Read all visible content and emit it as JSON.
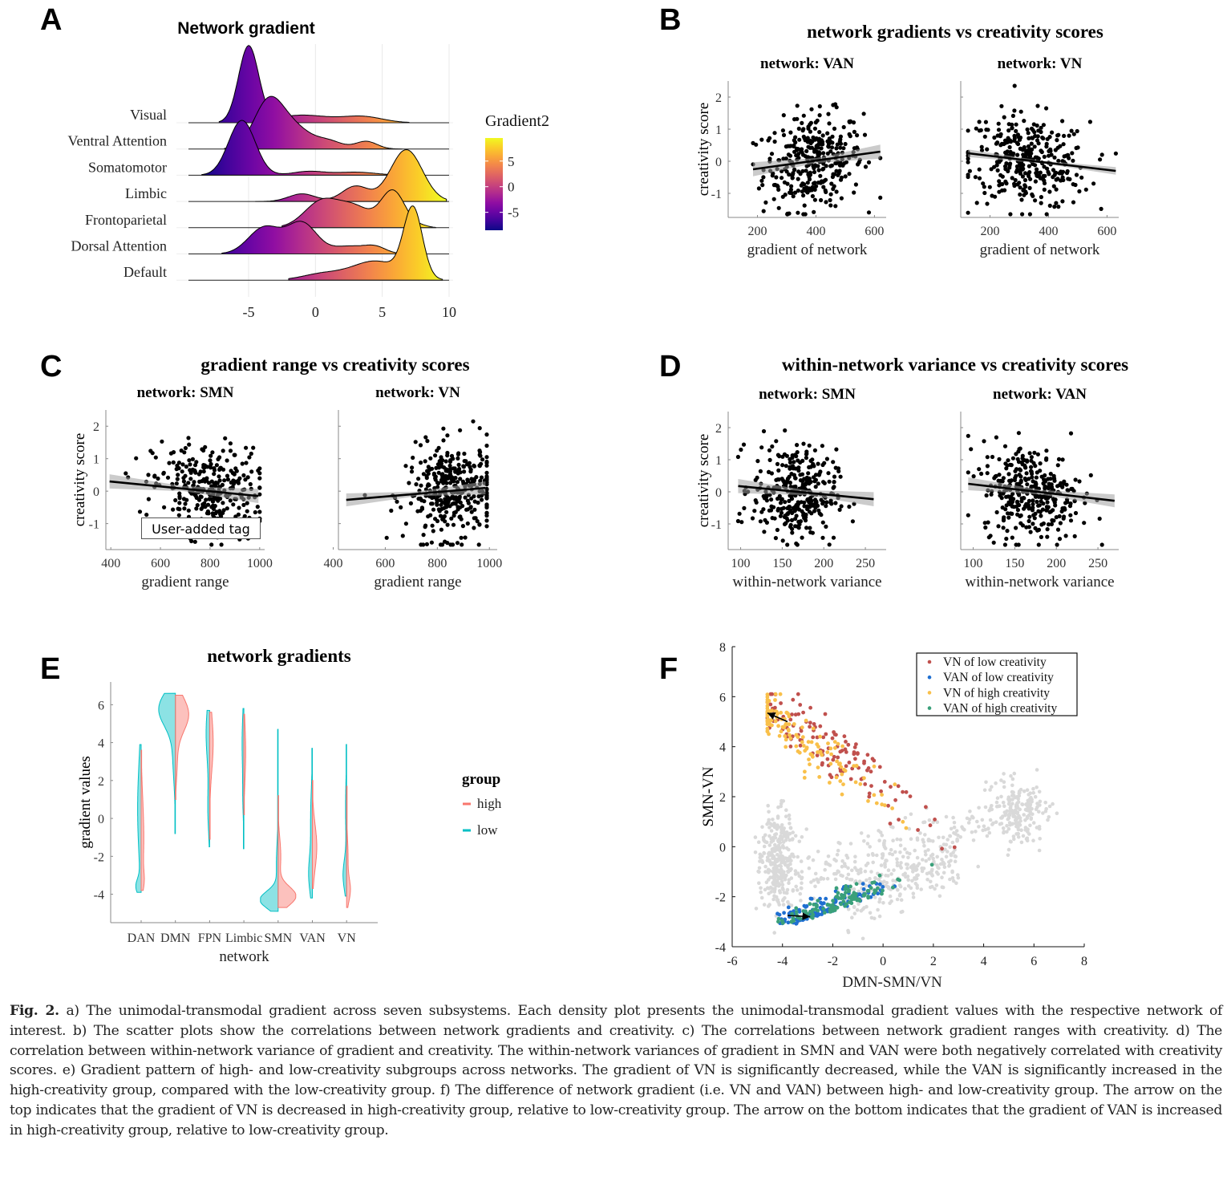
{
  "panels": {
    "A": "A",
    "B": "B",
    "C": "C",
    "D": "D",
    "E": "E",
    "F": "F"
  },
  "user_tag": "User-added tag",
  "caption": {
    "label": "Fig. 2.",
    "text": " a) The unimodal-transmodal gradient across seven subsystems. Each density plot presents the unimodal-transmodal gradient values with the respective network of interest. b) The scatter plots show the correlations between network gradients and creativity. c) The correlations between network gradient ranges with creativity. d) The correlation between within-network variance of gradient and creativity. The within-network variances of gradient in SMN and VAN were both negatively correlated with creativity scores. e) Gradient pattern of high- and low-creativity subgroups across networks. The gradient of VN is significantly decreased, while the VAN is significantly increased in the high-creativity group, compared with the low-creativity group. f) The difference of network gradient (i.e. VN and VAN) between high- and low-creativity group. The arrow on the top indicates that the gradient of VN is decreased in high-creativity group, relative to low-creativity group. The arrow on the bottom indicates that the gradient of VAN is increased in high-creativity group, relative to low-creativity group."
  },
  "chart_data": [
    {
      "id": "A",
      "type": "area",
      "subtype": "ridgeline",
      "title": "Network gradient",
      "xlabel": "",
      "ylabel": "",
      "xlim": [
        -9.5,
        10
      ],
      "xticks": [
        -5,
        0,
        5,
        10
      ],
      "grid": true,
      "legend": {
        "title": "Gradient2",
        "ticks": [
          5,
          0,
          -5
        ],
        "range": [
          -8.5,
          9.5
        ],
        "colormap": "plasma",
        "placement": "right"
      },
      "series": [
        {
          "name": "Visual",
          "peaks": [
            [
              -5.0,
              1.0,
              0.75
            ],
            [
              -1.0,
              0.1,
              2.0
            ],
            [
              3.5,
              0.08,
              1.5
            ]
          ],
          "range": [
            -7.2,
            7.0
          ]
        },
        {
          "name": "Ventral Attention",
          "peaks": [
            [
              -3.5,
              0.62,
              1.1
            ],
            [
              -1.5,
              0.25,
              1.2
            ],
            [
              1.0,
              0.1,
              1.0
            ],
            [
              3.8,
              0.1,
              0.8
            ]
          ],
          "range": [
            -6.8,
            6.5
          ]
        },
        {
          "name": "Somatomotor",
          "peaks": [
            [
              -5.5,
              0.72,
              1.0
            ],
            [
              -0.5,
              0.05,
              1.2
            ],
            [
              3.0,
              0.04,
              1.5
            ]
          ],
          "range": [
            -8.5,
            6.0
          ]
        },
        {
          "name": "Limbic",
          "peaks": [
            [
              -1.0,
              0.1,
              1.0
            ],
            [
              3.0,
              0.2,
              1.0
            ],
            [
              6.8,
              0.68,
              1.2
            ]
          ],
          "range": [
            -4.5,
            9.8
          ]
        },
        {
          "name": "Frontoparietal",
          "peaks": [
            [
              0.5,
              0.35,
              1.3
            ],
            [
              3.0,
              0.25,
              1.2
            ],
            [
              5.8,
              0.48,
              0.9
            ],
            [
              8.0,
              0.02,
              0.5
            ]
          ],
          "range": [
            -2.5,
            9.0
          ]
        },
        {
          "name": "Dorsal Attention",
          "peaks": [
            [
              -3.8,
              0.35,
              1.2
            ],
            [
              -1.0,
              0.4,
              1.1
            ],
            [
              2.5,
              0.1,
              1.3
            ],
            [
              4.5,
              0.08,
              0.8
            ]
          ],
          "range": [
            -7.0,
            6.0
          ]
        },
        {
          "name": "Default",
          "peaks": [
            [
              0.5,
              0.08,
              1.5
            ],
            [
              4.5,
              0.25,
              1.8
            ],
            [
              7.3,
              0.9,
              0.7
            ]
          ],
          "range": [
            -2.0,
            9.5
          ]
        }
      ]
    },
    {
      "id": "B",
      "type": "scatter",
      "title": "network gradients vs creativity scores",
      "ylabel": "creativity score",
      "facets": [
        {
          "subtitle": "network: VAN",
          "xlabel": "gradient of network",
          "xlim": [
            100,
            640
          ],
          "xticks": [
            200,
            400,
            600
          ],
          "ylim": [
            -1.75,
            2.5
          ],
          "yticks": [
            2,
            1,
            0,
            -1
          ],
          "fit": {
            "x": [
              185,
              620
            ],
            "y": [
              -0.25,
              0.3
            ],
            "ci": 0.22
          },
          "cloud": {
            "n": 330,
            "xmean": 390,
            "xsd": 85,
            "ymean": 0.0,
            "ysd": 0.72,
            "slope": 0.0013,
            "xmin": 185,
            "xmax": 620
          }
        },
        {
          "subtitle": "network: VN",
          "xlabel": "gradient of network",
          "xlim": [
            100,
            640
          ],
          "xticks": [
            200,
            400,
            600
          ],
          "ylim": [
            -1.75,
            2.5
          ],
          "yticks": [
            2,
            1,
            0,
            -1
          ],
          "fit": {
            "x": [
              125,
              630
            ],
            "y": [
              0.25,
              -0.3
            ],
            "ci": 0.12
          },
          "cloud": {
            "n": 330,
            "xmean": 330,
            "xsd": 105,
            "ymean": 0.0,
            "ysd": 0.72,
            "slope": -0.0011,
            "xmin": 125,
            "xmax": 630
          }
        }
      ]
    },
    {
      "id": "C",
      "type": "scatter",
      "title": "gradient range vs creativity scores",
      "ylabel": "creativity score",
      "facets": [
        {
          "subtitle": "network: SMN",
          "xlabel": "gradient range",
          "xlim": [
            380,
            1020
          ],
          "xticks": [
            400,
            600,
            800,
            1000
          ],
          "ylim": [
            -1.8,
            2.5
          ],
          "yticks": [
            2,
            1,
            0,
            -1
          ],
          "fit": {
            "x": [
              395,
              995
            ],
            "y": [
              0.3,
              -0.15
            ],
            "ci": 0.22
          },
          "cloud": {
            "n": 330,
            "xmean": 790,
            "xsd": 110,
            "ymean": 0.0,
            "ysd": 0.72,
            "slope": -0.0008,
            "xmin": 395,
            "xmax": 1000
          }
        },
        {
          "subtitle": "network: VN",
          "xlabel": "gradient range",
          "xlim": [
            420,
            1030
          ],
          "xticks": [
            400,
            600,
            800,
            1000
          ],
          "ylim": [
            -1.8,
            2.5
          ],
          "yticks": [
            2,
            1,
            0,
            -1
          ],
          "fit": {
            "x": [
              450,
              985
            ],
            "y": [
              -0.27,
              0.1
            ],
            "ci": 0.2
          },
          "cloud": {
            "n": 360,
            "xmean": 860,
            "xsd": 90,
            "ymean": 0.0,
            "ysd": 0.72,
            "slope": 0.0007,
            "xmin": 445,
            "xmax": 990
          }
        }
      ]
    },
    {
      "id": "D",
      "type": "scatter",
      "title": "within-network variance vs  creativity scores",
      "ylabel": "creativity score",
      "facets": [
        {
          "subtitle": "network: SMN",
          "xlabel": "within-network variance",
          "xlim": [
            85,
            275
          ],
          "xticks": [
            100,
            150,
            200,
            250
          ],
          "ylim": [
            -1.8,
            2.5
          ],
          "yticks": [
            2,
            1,
            0,
            -1
          ],
          "fit": {
            "x": [
              97,
              260
            ],
            "y": [
              0.18,
              -0.23
            ],
            "ci": 0.22
          },
          "cloud": {
            "n": 330,
            "xmean": 165,
            "xsd": 25,
            "ymean": 0.0,
            "ysd": 0.72,
            "slope": -0.0025,
            "xmin": 97,
            "xmax": 262
          }
        },
        {
          "subtitle": "network: VAN",
          "xlabel": "within-network variance",
          "xlim": [
            85,
            275
          ],
          "xticks": [
            100,
            150,
            200,
            250
          ],
          "ylim": [
            -1.8,
            2.5
          ],
          "yticks": [
            2,
            1,
            0,
            -1
          ],
          "fit": {
            "x": [
              94,
              270
            ],
            "y": [
              0.25,
              -0.28
            ],
            "ci": 0.2
          },
          "cloud": {
            "n": 340,
            "xmean": 170,
            "xsd": 30,
            "ymean": 0.0,
            "ysd": 0.72,
            "slope": -0.003,
            "xmin": 94,
            "xmax": 270
          }
        }
      ]
    },
    {
      "id": "E",
      "type": "area",
      "subtype": "split-violin",
      "title": "network gradients",
      "xlabel": "network",
      "ylabel": "gradient values",
      "ylim": [
        -5.5,
        7.2
      ],
      "yticks": [
        6,
        4,
        2,
        0,
        -2,
        -4
      ],
      "categories": [
        "DAN",
        "DMN",
        "FPN",
        "Limbic",
        "SMN",
        "VAN",
        "VN"
      ],
      "legend": {
        "title": "group",
        "placement": "right",
        "entries": [
          {
            "name": "high",
            "color": "#f8766d"
          },
          {
            "name": "low",
            "color": "#00bfc4"
          }
        ]
      },
      "series": [
        {
          "name": "low",
          "violins": [
            {
              "range": [
                -3.9,
                3.9
              ],
              "peaks": [
                [
                  -3.6,
                  0.25,
                  0.4
                ],
                [
                  0.5,
                  0.2,
                  2.5
                ]
              ]
            },
            {
              "range": [
                -0.8,
                6.6
              ],
              "peaks": [
                [
                  5.8,
                  0.9,
                  0.9
                ],
                [
                  3.5,
                  0.15,
                  1.5
                ]
              ]
            },
            {
              "range": [
                -1.5,
                5.7
              ],
              "peaks": [
                [
                  4.5,
                  0.2,
                  1.5
                ],
                [
                  0.5,
                  0.1,
                  1.2
                ]
              ]
            },
            {
              "range": [
                -1.6,
                5.8
              ],
              "peaks": [
                [
                  4.0,
                  0.1,
                  1.5
                ],
                [
                  1.0,
                  0.05,
                  1.0
                ]
              ]
            },
            {
              "range": [
                -4.9,
                4.7
              ],
              "peaks": [
                [
                  -4.3,
                  1.0,
                  0.45
                ],
                [
                  -2.5,
                  0.1,
                  1.2
                ]
              ]
            },
            {
              "range": [
                -4.2,
                3.7
              ],
              "peaks": [
                [
                  -3.0,
                  0.2,
                  1.0
                ],
                [
                  0.0,
                  0.1,
                  1.5
                ]
              ]
            },
            {
              "range": [
                -4.1,
                3.9
              ],
              "peaks": [
                [
                  -3.0,
                  0.2,
                  0.8
                ],
                [
                  0.5,
                  0.06,
                  1.5
                ]
              ]
            }
          ]
        },
        {
          "name": "high",
          "violins": [
            {
              "range": [
                -3.8,
                3.6
              ],
              "peaks": [
                [
                  -1.0,
                  0.15,
                  2.0
                ],
                [
                  -3.3,
                  0.1,
                  0.5
                ]
              ]
            },
            {
              "range": [
                1.0,
                6.5
              ],
              "peaks": [
                [
                  5.5,
                  0.75,
                  0.9
                ],
                [
                  3.0,
                  0.1,
                  1.0
                ]
              ]
            },
            {
              "range": [
                -1.1,
                5.6
              ],
              "peaks": [
                [
                  4.0,
                  0.2,
                  1.5
                ]
              ]
            },
            {
              "range": [
                0.2,
                5.5
              ],
              "peaks": [
                [
                  3.5,
                  0.1,
                  1.5
                ]
              ]
            },
            {
              "range": [
                -4.7,
                1.2
              ],
              "peaks": [
                [
                  -4.1,
                  1.0,
                  0.5
                ],
                [
                  -2.0,
                  0.15,
                  1.0
                ]
              ]
            },
            {
              "range": [
                -3.7,
                2.0
              ],
              "peaks": [
                [
                  -1.5,
                  0.25,
                  1.2
                ]
              ]
            },
            {
              "range": [
                -4.7,
                1.7
              ],
              "peaks": [
                [
                  -3.8,
                  0.2,
                  0.6
                ],
                [
                  -2.0,
                  0.08,
                  1.0
                ]
              ]
            }
          ]
        }
      ]
    },
    {
      "id": "F",
      "type": "scatter",
      "title": "",
      "xlabel": "DMN-SMN/VN",
      "ylabel": "SMN-VN",
      "xlim": [
        -6,
        8
      ],
      "ylim": [
        -4,
        8
      ],
      "xticks": [
        -6,
        -4,
        -2,
        0,
        2,
        4,
        6,
        8
      ],
      "yticks": [
        8,
        6,
        4,
        2,
        0,
        -2,
        -4
      ],
      "legend": {
        "placement": "top-right",
        "entries": [
          {
            "name": "VN of low creativity",
            "color": "#c0504d"
          },
          {
            "name": "VAN of low creativity",
            "color": "#1f6fd1"
          },
          {
            "name": "VN of high creativity",
            "color": "#f9c04a"
          },
          {
            "name": "VAN of high creativity",
            "color": "#3aa07a"
          }
        ]
      },
      "background_color": "#d9d9d9",
      "arrows": [
        {
          "from": [
            -3.8,
            5.0
          ],
          "to": [
            -4.6,
            5.35
          ]
        },
        {
          "from": [
            -3.8,
            -2.75
          ],
          "to": [
            -2.9,
            -2.8
          ]
        }
      ],
      "groups": [
        {
          "name": "VN of low creativity",
          "color": "#c0504d",
          "center": [
            -2.3,
            4.2
          ],
          "spread": [
            1.6,
            1.3
          ],
          "n": 130
        },
        {
          "name": "VAN of low creativity",
          "color": "#1f6fd1",
          "center": [
            -2.4,
            -2.6
          ],
          "spread": [
            1.2,
            0.55
          ],
          "n": 120
        },
        {
          "name": "VN of high creativity",
          "color": "#f9c04a",
          "center": [
            -2.8,
            4.5
          ],
          "spread": [
            1.6,
            1.2
          ],
          "n": 130
        },
        {
          "name": "VAN of high creativity",
          "color": "#3aa07a",
          "center": [
            -2.0,
            -2.6
          ],
          "spread": [
            1.3,
            0.55
          ],
          "n": 110
        }
      ]
    }
  ]
}
